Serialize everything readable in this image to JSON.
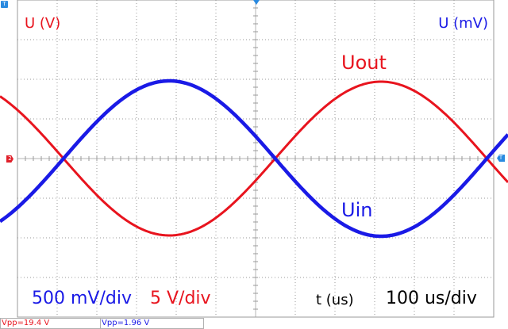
{
  "chart_data": {
    "type": "line",
    "x_range": [
      0,
      1200
    ],
    "xlabel": "t (us)",
    "left_axis_label": "U (V)",
    "right_axis_label": "U (mV)",
    "grid": true,
    "series": [
      {
        "name": "Uout",
        "color": "#e8141e",
        "scale_per_div": "5 V/div",
        "peak_to_peak_V": 19.4,
        "amplitude_div": 1.94,
        "period_us": 1000,
        "start_phase_deg": 36,
        "offset_div": 0,
        "sweep_end_phase_deg": 468
      },
      {
        "name": "Uin",
        "color": "#1a1ae6",
        "scale_per_div": "500 mV/div",
        "peak_to_peak_V": 1.96,
        "amplitude_div": 1.96,
        "period_us": 1000,
        "start_phase_deg": 216,
        "offset_div": 0,
        "sweep_end_phase_deg": 648
      }
    ]
  },
  "labels": {
    "y_left": "U (V)",
    "y_right": "U (mV)",
    "trace_out": "Uout",
    "trace_in": "Uin",
    "scale_in": "500 mV/div",
    "scale_out": "5 V/div",
    "time_axis": "t (us)",
    "timebase": "100 us/div"
  },
  "markers": {
    "trigger": "T",
    "channel": "2"
  },
  "readouts": {
    "ch2": "Vpp=19.4 V",
    "ch1": "Vpp=1.96 V"
  },
  "colors": {
    "red": "#e8141e",
    "blue": "#1a1ae6",
    "marker": "#2a8ae0",
    "marker_red": "#e0202a"
  }
}
